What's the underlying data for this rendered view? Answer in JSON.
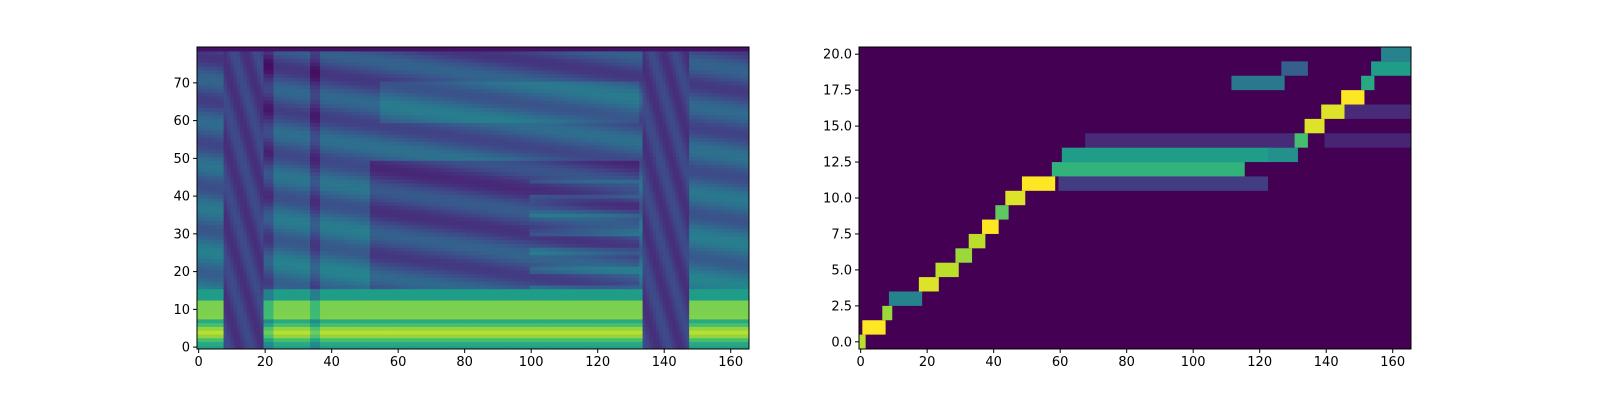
{
  "chart_data": [
    {
      "type": "heatmap",
      "title": "",
      "xlabel": "",
      "ylabel": "",
      "xlim": [
        -0.5,
        165.5
      ],
      "ylim": [
        -0.5,
        79.5
      ],
      "x_ticks": [
        0,
        20,
        40,
        60,
        80,
        100,
        120,
        140,
        160
      ],
      "y_ticks": [
        0,
        10,
        20,
        30,
        40,
        50,
        60,
        70
      ],
      "colormap": "viridis",
      "value_range": [
        0,
        1
      ],
      "content": "mel spectrogram",
      "grid": false,
      "legend": "none"
    },
    {
      "type": "heatmap",
      "title": "",
      "xlabel": "",
      "ylabel": "",
      "xlim": [
        -0.5,
        165.5
      ],
      "ylim": [
        -0.5,
        20.5
      ],
      "x_ticks": [
        0,
        20,
        40,
        60,
        80,
        100,
        120,
        140,
        160
      ],
      "y_ticks": [
        0.0,
        2.5,
        5.0,
        7.5,
        10.0,
        12.5,
        15.0,
        17.5,
        20.0
      ],
      "colormap": "viridis",
      "value_range": [
        0,
        1
      ],
      "content": "attention alignment",
      "grid": false,
      "legend": "none",
      "alignment_path": [
        {
          "x_start": 0,
          "x_end": 1,
          "y": 0,
          "value": 0.9
        },
        {
          "x_start": 1,
          "x_end": 7,
          "y": 1,
          "value": 1.0
        },
        {
          "x_start": 7,
          "x_end": 9,
          "y": 2,
          "value": 0.85
        },
        {
          "x_start": 9,
          "x_end": 18,
          "y": 3,
          "value": 0.45
        },
        {
          "x_start": 18,
          "x_end": 23,
          "y": 4,
          "value": 0.95
        },
        {
          "x_start": 23,
          "x_end": 29,
          "y": 5,
          "value": 0.9
        },
        {
          "x_start": 29,
          "x_end": 33,
          "y": 6,
          "value": 0.85
        },
        {
          "x_start": 33,
          "x_end": 37,
          "y": 7,
          "value": 0.9
        },
        {
          "x_start": 37,
          "x_end": 41,
          "y": 8,
          "value": 1.0
        },
        {
          "x_start": 41,
          "x_end": 44,
          "y": 9,
          "value": 0.75
        },
        {
          "x_start": 44,
          "x_end": 49,
          "y": 10,
          "value": 0.95
        },
        {
          "x_start": 49,
          "x_end": 58,
          "y": 11,
          "value": 1.0
        },
        {
          "x_start": 58,
          "x_end": 115,
          "y": 12,
          "value": 0.65
        },
        {
          "x_start": 61,
          "x_end": 123,
          "y": 13,
          "value": 0.55
        },
        {
          "x_start": 123,
          "x_end": 131,
          "y": 13,
          "value": 0.5
        },
        {
          "x_start": 131,
          "x_end": 134,
          "y": 14,
          "value": 0.7
        },
        {
          "x_start": 134,
          "x_end": 139,
          "y": 15,
          "value": 0.95
        },
        {
          "x_start": 139,
          "x_end": 145,
          "y": 16,
          "value": 0.95
        },
        {
          "x_start": 145,
          "x_end": 151,
          "y": 17,
          "value": 1.0
        },
        {
          "x_start": 151,
          "x_end": 154,
          "y": 18,
          "value": 0.6
        },
        {
          "x_start": 154,
          "x_end": 165,
          "y": 19,
          "value": 0.55
        },
        {
          "x_start": 157,
          "x_end": 165,
          "y": 20,
          "value": 0.45
        }
      ],
      "secondary_bands": [
        {
          "x_start": 112,
          "x_end": 127,
          "y": 18,
          "value": 0.4
        },
        {
          "x_start": 127,
          "x_end": 134,
          "y": 19,
          "value": 0.3
        },
        {
          "x_start": 60,
          "x_end": 122,
          "y": 11,
          "value": 0.18
        },
        {
          "x_start": 68,
          "x_end": 131,
          "y": 14,
          "value": 0.12
        },
        {
          "x_start": 140,
          "x_end": 165,
          "y": 14,
          "value": 0.1
        },
        {
          "x_start": 146,
          "x_end": 165,
          "y": 16,
          "value": 0.12
        }
      ]
    }
  ]
}
